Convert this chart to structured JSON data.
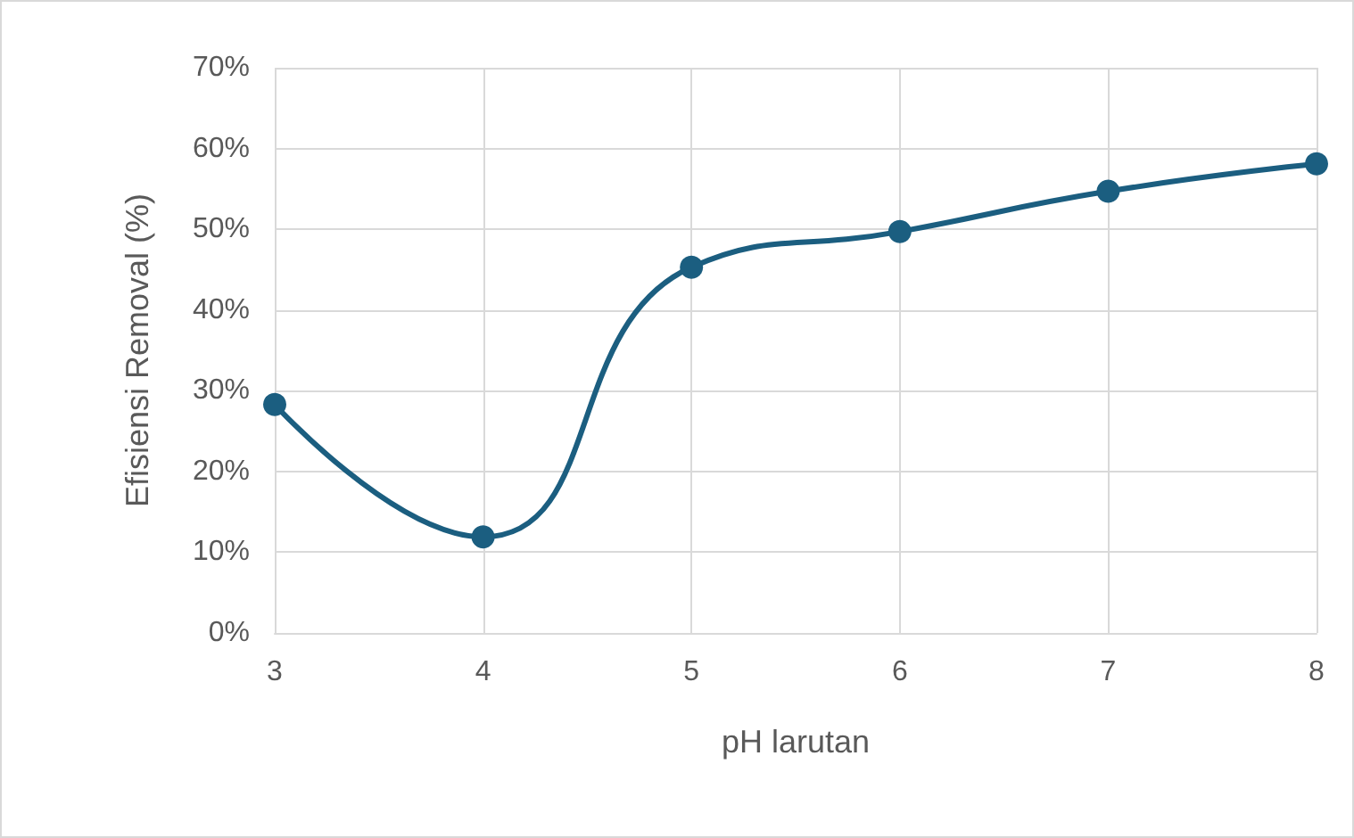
{
  "chart_data": {
    "type": "line",
    "xlabel": "pH larutan",
    "ylabel": "Efisiensi Removal (%)",
    "x": [
      3,
      4,
      5,
      6,
      7,
      8
    ],
    "series": [
      {
        "color": "#1b5e80",
        "values": [
          28.3,
          11.9,
          45.3,
          49.7,
          54.7,
          58.1
        ]
      }
    ],
    "xlim": [
      3,
      8
    ],
    "xticks": [
      3,
      4,
      5,
      6,
      7,
      8
    ],
    "ylim": [
      0,
      70
    ],
    "yticks": [
      {
        "value": 0,
        "label": "0%"
      },
      {
        "value": 10,
        "label": "10%"
      },
      {
        "value": 20,
        "label": "20%"
      },
      {
        "value": 30,
        "label": "30%"
      },
      {
        "value": 40,
        "label": "40%"
      },
      {
        "value": 50,
        "label": "50%"
      },
      {
        "value": 60,
        "label": "60%"
      },
      {
        "value": 70,
        "label": "70%"
      }
    ],
    "grid": true,
    "marker": "circle",
    "line_style": "solid"
  }
}
